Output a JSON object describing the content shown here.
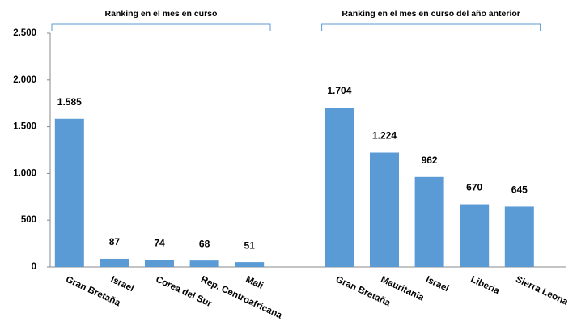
{
  "chart_data": {
    "type": "bar",
    "annotations": [
      "Ranking en el mes en curso",
      "Ranking en el mes en curso del año anterior"
    ],
    "categories": [
      "Gran Bretaña",
      "Israel",
      "Corea del Sur",
      "Rep. Centroafricana",
      "Mali",
      null,
      "Gran Bretaña",
      "Mauritania",
      "Israel",
      "Liberia",
      "Sierra Leona"
    ],
    "values": [
      1585,
      87,
      74,
      68,
      51,
      null,
      1704,
      1224,
      962,
      670,
      645
    ],
    "value_labels": [
      "1.585",
      "87",
      "74",
      "68",
      "51",
      null,
      "1.704",
      "1.224",
      "962",
      "670",
      "645"
    ],
    "color": "#5b9bd5",
    "ylim": [
      0,
      2500
    ],
    "yticks": [
      0,
      500,
      {
        "value": 1000,
        "label": "1.000"
      },
      {
        "value": 1500,
        "label": "1.500"
      },
      {
        "value": 2000,
        "label": "2.000"
      },
      {
        "value": 2500,
        "label": "2.500"
      }
    ],
    "grid": false
  }
}
